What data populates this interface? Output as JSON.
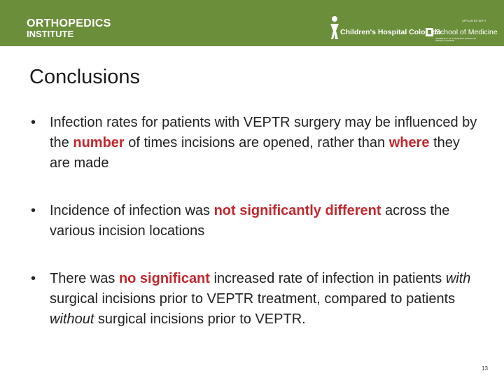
{
  "header": {
    "brand_line1": "ORTHOPEDICS",
    "brand_line2": "INSTITUTE",
    "hospital": "Children's Hospital Colorado",
    "affiliation": "AFFILIATED WITH",
    "school": "School of Medicine",
    "university": "UNIVERSITY OF COLORADO ANSCHUTZ MEDICAL CAMPUS"
  },
  "title": "Conclusions",
  "bullets": [
    [
      {
        "text": "Infection rates for patients with VEPTR surgery may be influenced by the "
      },
      {
        "text": "number",
        "style": "bold-red"
      },
      {
        "text": " of times incisions are opened, rather than "
      },
      {
        "text": "where",
        "style": "bold-red"
      },
      {
        "text": " they are made"
      }
    ],
    [
      {
        "text": "Incidence of infection was "
      },
      {
        "text": "not significantly different",
        "style": "bold-red"
      },
      {
        "text": " across the various incision locations"
      }
    ],
    [
      {
        "text": "There was "
      },
      {
        "text": "no significant",
        "style": "bold-red"
      },
      {
        "text": " increased rate of infection in patients "
      },
      {
        "text": "with",
        "style": "italic"
      },
      {
        "text": " surgical incisions prior to VEPTR treatment, compared to patients "
      },
      {
        "text": "without",
        "style": "italic"
      },
      {
        "text": " surgical incisions prior to VEPTR."
      }
    ]
  ],
  "page_number": "13"
}
